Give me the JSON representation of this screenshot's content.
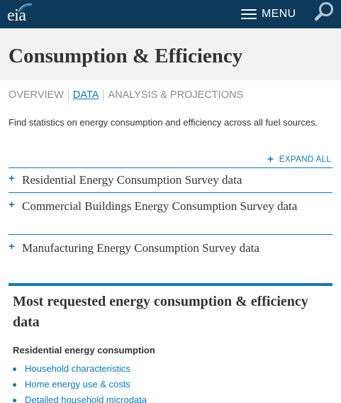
{
  "header": {
    "logo_text": "eia",
    "menu_label": "MENU",
    "brand_color": "#0d3a5a",
    "icons": [
      "eia-logo",
      "hamburger-menu-icon",
      "search-icon"
    ]
  },
  "page": {
    "title": "Consumption & Efficiency"
  },
  "tabs": [
    {
      "label": "OVERVIEW",
      "active": false
    },
    {
      "label": "DATA",
      "active": true
    },
    {
      "label": "ANALYSIS & PROJECTIONS",
      "active": false
    }
  ],
  "intro": "Find statistics on energy consumption and efficiency across all fuel sources.",
  "accordion": {
    "expand_all_icon": "plus-icon",
    "expand_all_label": "EXPAND ALL",
    "items": [
      {
        "icon": "plus-icon",
        "label": "Residential Energy Consumption Survey data"
      },
      {
        "icon": "plus-icon",
        "label": "Commercial Buildings Energy Consumption Survey data"
      },
      {
        "icon": "plus-icon",
        "label": "Manufacturing Energy Consumption Survey data"
      }
    ]
  },
  "most_requested": {
    "title": "Most requested energy consumption & efficiency data",
    "section_title": "Residential energy consumption",
    "links": [
      "Household characteristics",
      "Home energy use & costs",
      "Detailed household microdata"
    ]
  },
  "colors": {
    "accent": "#0a7ac0",
    "header_bg": "#0d3a5a",
    "title_band": "#f2f2f2",
    "text": "#333333",
    "muted": "#8a8a8a"
  }
}
